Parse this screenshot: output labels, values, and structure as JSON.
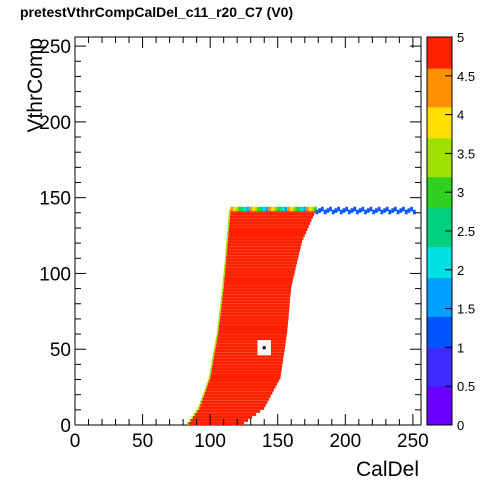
{
  "chart_data": {
    "type": "heatmap",
    "title": "pretestVthrCompCalDel_c11_r20_C7 (V0)",
    "xlabel": "CalDel",
    "ylabel": "VthrComp",
    "xlim": [
      0,
      256
    ],
    "ylim": [
      0,
      256
    ],
    "zlim": [
      0,
      5
    ],
    "x_ticks": [
      0,
      50,
      100,
      150,
      200,
      250
    ],
    "y_ticks": [
      0,
      50,
      100,
      150,
      200,
      250
    ],
    "z_ticks": [
      0,
      0.5,
      1,
      1.5,
      2,
      2.5,
      3,
      3.5,
      4,
      4.5,
      5
    ],
    "dominant_value": 5,
    "region": {
      "description_left_edge_x_at_y": [
        [
          0,
          84
        ],
        [
          10,
          92
        ],
        [
          30,
          100
        ],
        [
          60,
          106
        ],
        [
          90,
          110
        ],
        [
          120,
          113
        ],
        [
          140,
          115
        ]
      ],
      "right_edge_x_at_y": [
        [
          0,
          125
        ],
        [
          10,
          140
        ],
        [
          30,
          152
        ],
        [
          60,
          157
        ],
        [
          90,
          160
        ],
        [
          120,
          168
        ],
        [
          140,
          178
        ]
      ],
      "top_y": 141,
      "plateau": {
        "x_from": 178,
        "x_to": 252,
        "y": 143,
        "value_range": [
          1,
          4
        ]
      },
      "marker": {
        "x": 140,
        "y": 51
      }
    },
    "palette": [
      "#6a00ff",
      "#3d2bff",
      "#0055ff",
      "#00a0ff",
      "#00e0e0",
      "#00d080",
      "#30d020",
      "#a0e000",
      "#ffe000",
      "#ff9000",
      "#ff2000"
    ]
  }
}
